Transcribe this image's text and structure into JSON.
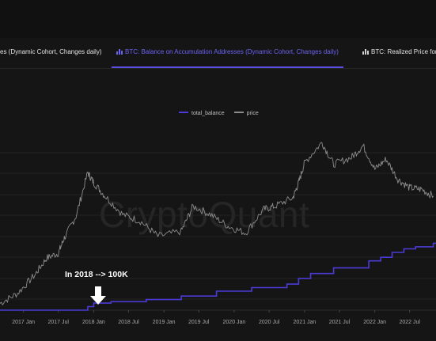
{
  "tabs": [
    {
      "label": "sses (Dynamic Cohort, Changes daily)",
      "active": false
    },
    {
      "label": "BTC: Balance on Accumulation Addresses (Dynamic Cohort, Changes daily)",
      "active": true
    },
    {
      "label": "BTC: Realized Price for A",
      "active": false
    }
  ],
  "colors": {
    "total_balance": "#4b3bd6",
    "price": "#8c8c8c",
    "active_tab": "#6b63f2"
  },
  "icons": {
    "tab": "bar-chart-icon",
    "annotation": "down-arrow-icon"
  },
  "watermark": "CryptoQuant",
  "annotation": "In 2018 --> 100K",
  "chart_data": {
    "type": "line",
    "legend": [
      "total_balance",
      "price"
    ],
    "legend_position": "top-center",
    "grid": true,
    "x_tick_labels": [
      "2017 Jan",
      "2017 Jul",
      "2018 Jan",
      "2018 Jul",
      "2019 Jan",
      "2019 Jul",
      "2020 Jan",
      "2020 Jul",
      "2021 Jan",
      "2021 Jul",
      "2022 Jan",
      "2022 Jul"
    ],
    "x_range": [
      "2016-09-01",
      "2022-11-15"
    ],
    "series": [
      {
        "name": "total_balance",
        "x": [
          "2016-09",
          "2017-07",
          "2017-11",
          "2017-12",
          "2018-01",
          "2018-04",
          "2018-10",
          "2019-04",
          "2019-10",
          "2020-04",
          "2020-10",
          "2020-12",
          "2021-02",
          "2021-06",
          "2021-12",
          "2022-02",
          "2022-04",
          "2022-06",
          "2022-08",
          "2022-11"
        ],
        "values": [
          0.0,
          0.0,
          0.0,
          0.05,
          0.1,
          0.12,
          0.15,
          0.2,
          0.27,
          0.32,
          0.37,
          0.45,
          0.52,
          0.6,
          0.7,
          0.75,
          0.82,
          0.87,
          0.9,
          0.95
        ]
      },
      {
        "name": "price",
        "x": [
          "2016-09",
          "2016-12",
          "2017-03",
          "2017-05",
          "2017-07",
          "2017-08",
          "2017-10",
          "2017-12",
          "2018-01",
          "2018-03",
          "2018-06",
          "2018-09",
          "2018-12",
          "2019-04",
          "2019-06",
          "2019-09",
          "2019-12",
          "2020-03",
          "2020-06",
          "2020-08",
          "2020-11",
          "2020-12",
          "2021-01",
          "2021-04",
          "2021-06",
          "2021-09",
          "2021-11",
          "2022-01",
          "2022-03",
          "2022-05",
          "2022-07",
          "2022-09",
          "2022-11"
        ],
        "values": [
          0.04,
          0.1,
          0.21,
          0.31,
          0.34,
          0.43,
          0.56,
          0.82,
          0.76,
          0.68,
          0.57,
          0.53,
          0.44,
          0.47,
          0.62,
          0.57,
          0.5,
          0.46,
          0.6,
          0.62,
          0.67,
          0.76,
          0.88,
          1.0,
          0.87,
          0.91,
          0.98,
          0.84,
          0.9,
          0.78,
          0.73,
          0.72,
          0.68
        ]
      }
    ]
  }
}
